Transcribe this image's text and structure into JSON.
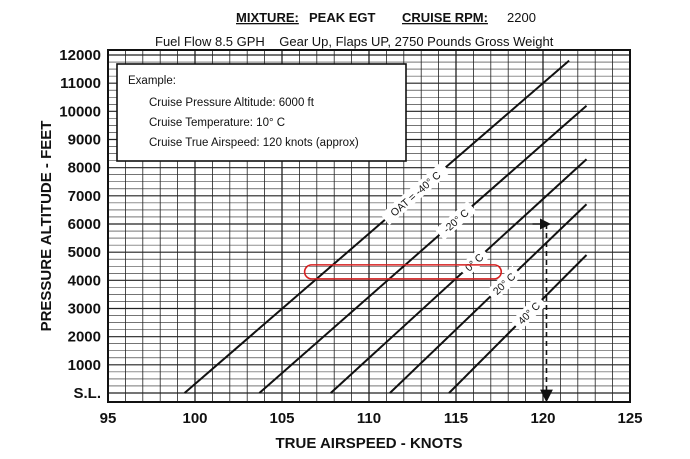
{
  "header": {
    "mixture_label": "MIXTURE:",
    "mixture_value": "PEAK EGT",
    "rpm_label": "CRUISE RPM:",
    "rpm_value": "2200",
    "subtitle": "Fuel Flow 8.5 GPH    Gear Up, Flaps UP, 2750 Pounds Gross Weight"
  },
  "example": {
    "heading": "Example:",
    "lines": [
      "Cruise Pressure Altitude: 6000 ft",
      "Cruise Temperature: 10° C",
      "Cruise True Airspeed: 120 knots (approx)"
    ]
  },
  "chart_data": {
    "type": "line",
    "xlabel": "TRUE AIRSPEED - KNOTS",
    "ylabel": "PRESSURE ALTITUDE - FEET",
    "xlim": [
      95,
      125
    ],
    "ylim": [
      0,
      12000
    ],
    "x_ticks": [
      95,
      100,
      105,
      110,
      115,
      120,
      125
    ],
    "y_ticks": [
      {
        "value": 0,
        "label": "S.L."
      },
      {
        "value": 1000,
        "label": "1000"
      },
      {
        "value": 2000,
        "label": "2000"
      },
      {
        "value": 3000,
        "label": "3000"
      },
      {
        "value": 4000,
        "label": "4000"
      },
      {
        "value": 5000,
        "label": "5000"
      },
      {
        "value": 6000,
        "label": "6000"
      },
      {
        "value": 7000,
        "label": "7000"
      },
      {
        "value": 8000,
        "label": "8000"
      },
      {
        "value": 9000,
        "label": "9000"
      },
      {
        "value": 10000,
        "label": "10000"
      },
      {
        "value": 11000,
        "label": "11000"
      },
      {
        "value": 12000,
        "label": "12000"
      }
    ],
    "grid": {
      "x_step_knots": 1,
      "y_step_feet": 250
    },
    "series": [
      {
        "name": "OAT = -40° C",
        "points": [
          [
            99.4,
            0
          ],
          [
            121.5,
            11800
          ]
        ]
      },
      {
        "name": "-20° C",
        "points": [
          [
            103.7,
            0
          ],
          [
            122.5,
            10200
          ]
        ]
      },
      {
        "name": "0° C",
        "points": [
          [
            107.8,
            0
          ],
          [
            122.5,
            8300
          ]
        ]
      },
      {
        "name": "20° C",
        "points": [
          [
            111.2,
            0
          ],
          [
            122.5,
            6700
          ]
        ]
      },
      {
        "name": "40° C",
        "points": [
          [
            114.6,
            0
          ],
          [
            122.5,
            4900
          ]
        ]
      }
    ],
    "example_path": {
      "vertical_x": 120.2,
      "from_y": 6000,
      "to_y": 0,
      "style": "dashed with arrows"
    },
    "highlight": {
      "x_range": [
        106.3,
        117.6
      ],
      "y_center": 4300,
      "color": "#d62020"
    }
  }
}
